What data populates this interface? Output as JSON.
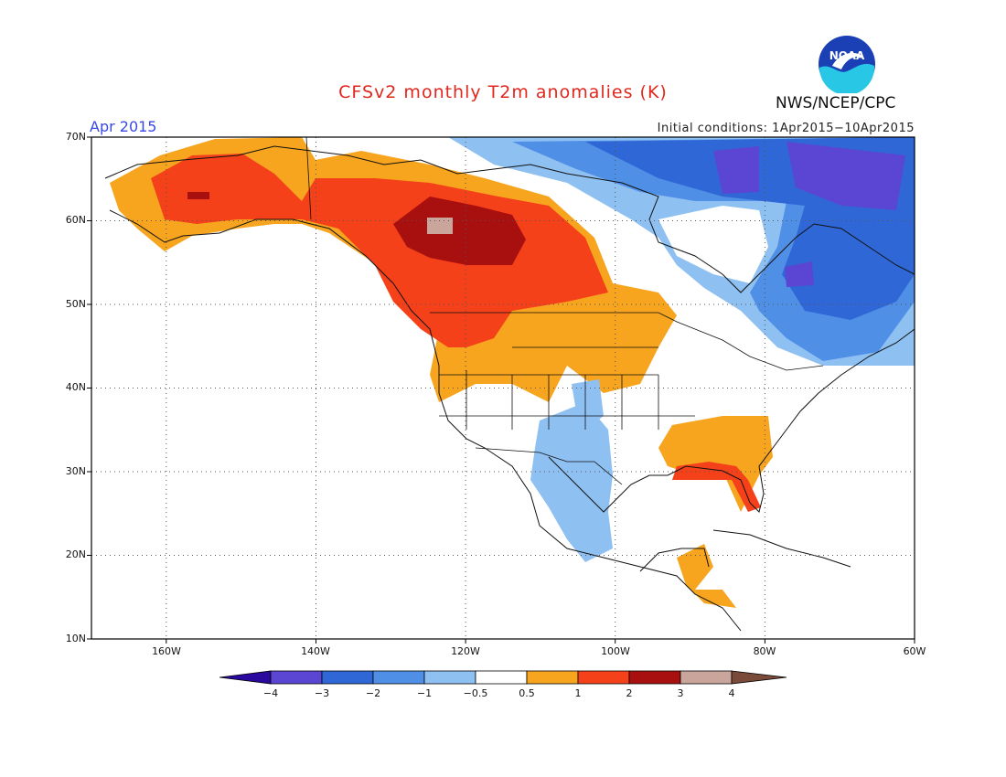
{
  "title": "CFSv2 monthly T2m anomalies (K)",
  "organization": "NWS/NCEP/CPC",
  "logo_text": "NOAA",
  "valid_month": "Apr 2015",
  "initial_conditions": "Initial conditions: 1Apr2015−10Apr2015",
  "map": {
    "lon_range": [
      -170,
      -60
    ],
    "lat_range": [
      10,
      70
    ],
    "lat_ticks": [
      "70N",
      "60N",
      "50N",
      "40N",
      "30N",
      "20N",
      "10N"
    ],
    "lon_ticks": [
      "160W",
      "140W",
      "120W",
      "100W",
      "80W",
      "60W"
    ],
    "gridlines": "dotted"
  },
  "colorbar": {
    "levels": [
      "−4",
      "−3",
      "−2",
      "−1",
      "−0.5",
      "0.5",
      "1",
      "2",
      "3",
      "4"
    ],
    "colors": [
      "#2a0a9e",
      "#5a46d2",
      "#2f67d6",
      "#4f8fe6",
      "#8fc0f2",
      "#ffffff",
      "#f7a41e",
      "#f5411a",
      "#a80f0f",
      "#c9a59c",
      "#7a4a3a"
    ]
  },
  "colors": {
    "title": "#e0281e",
    "month": "#3a48e6",
    "noaa_blue": "#1b3fb5",
    "noaa_cyan": "#29c7e6"
  }
}
